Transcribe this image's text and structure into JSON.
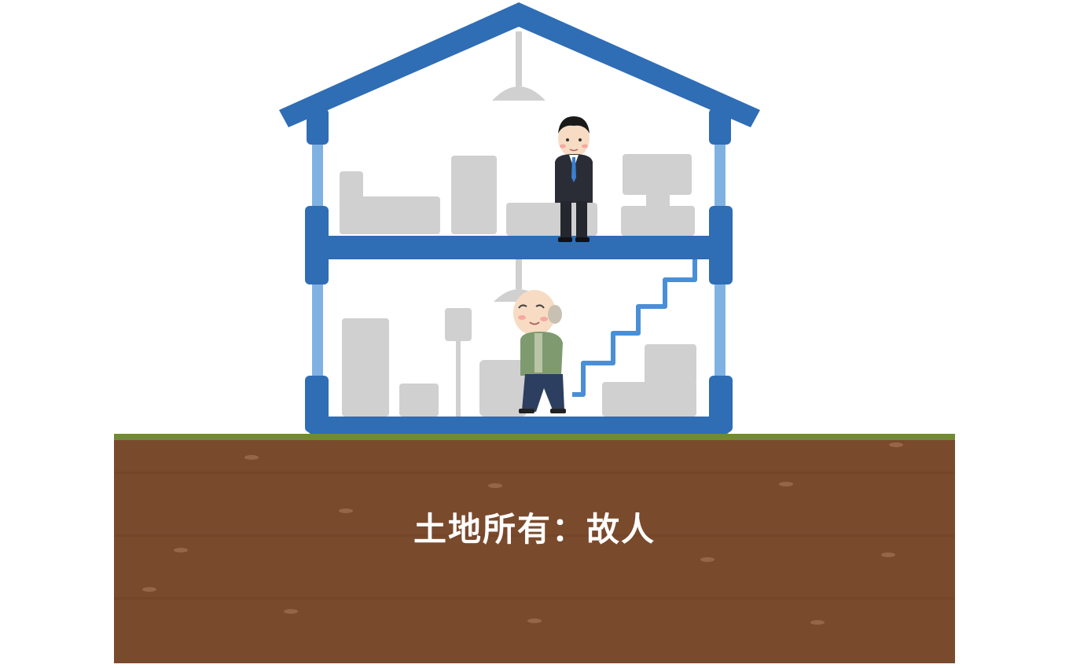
{
  "caption": "土地所有：故人",
  "colors": {
    "frame": "#2f6db5",
    "frame_light": "#7fb2e2",
    "furniture": "#d0d0d0",
    "soil": "#7a4a2c",
    "soil_dark": "#6a3d22",
    "grass": "#6bbf3a",
    "caption_text": "#ffffff"
  },
  "figures": {
    "upper_floor": "businessman-figure",
    "lower_floor": "elderly-man-figure"
  }
}
